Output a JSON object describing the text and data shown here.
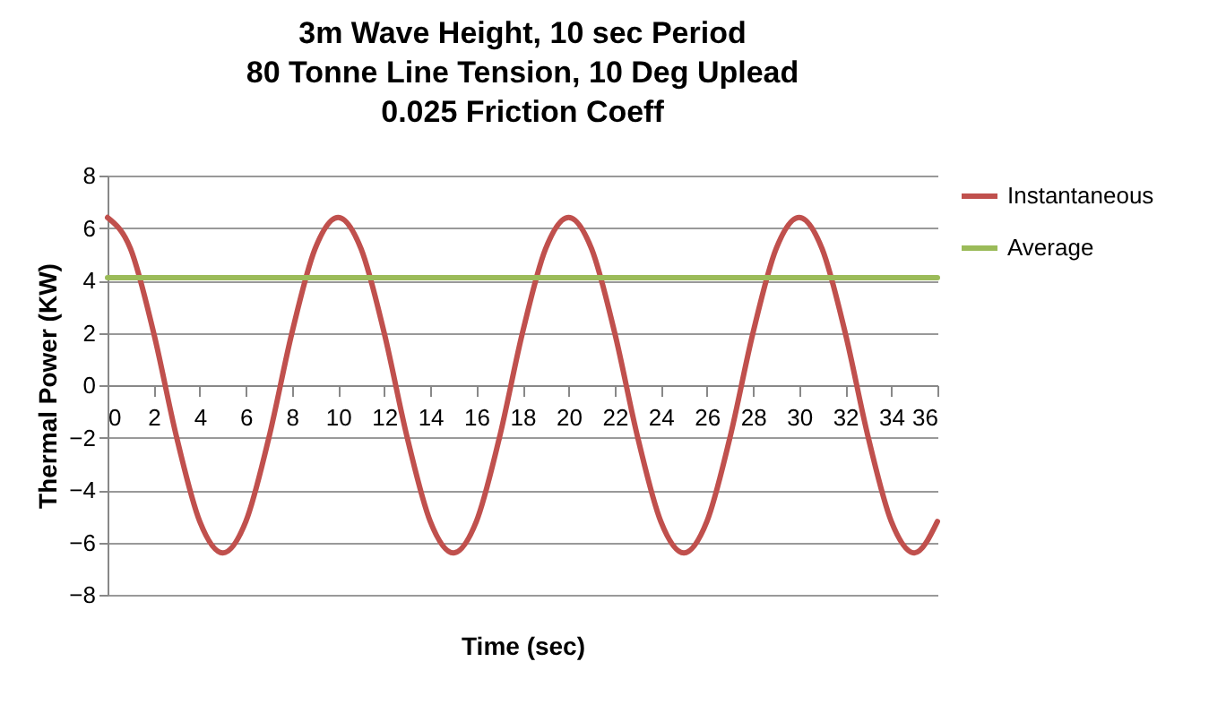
{
  "chart_data": {
    "type": "line",
    "title": "3m Wave Height, 10 sec Period\n80 Tonne Line Tension, 10 Deg Uplead\n0.025 Friction Coeff",
    "xlabel": "Time (sec)",
    "ylabel": "Thermal Power (KW)",
    "x": [
      0,
      1,
      2,
      3,
      4,
      5,
      6,
      7,
      8,
      9,
      10,
      11,
      12,
      13,
      14,
      15,
      16,
      17,
      18,
      19,
      20,
      21,
      22,
      23,
      24,
      25,
      26,
      27,
      28,
      29,
      30,
      31,
      32,
      33,
      34,
      35,
      36
    ],
    "series": [
      {
        "name": "Instantaneous",
        "color": "#c0504d",
        "values": [
          6.4,
          5.2,
          2.0,
          -2.0,
          -5.2,
          -6.4,
          -5.2,
          -2.0,
          2.0,
          5.2,
          6.4,
          5.2,
          2.0,
          -2.0,
          -5.2,
          -6.4,
          -5.2,
          -2.0,
          2.0,
          5.2,
          6.4,
          5.2,
          2.0,
          -2.0,
          -5.2,
          -6.4,
          -5.2,
          -2.0,
          2.0,
          5.2,
          6.4,
          5.2,
          2.0,
          -2.0,
          -5.2,
          -6.4,
          -5.2
        ]
      },
      {
        "name": "Average",
        "color": "#9bbb59",
        "x": [
          0,
          36
        ],
        "values": [
          4.1,
          4.1
        ]
      }
    ],
    "xlim": [
      0,
      36
    ],
    "xticks": [
      0,
      2,
      4,
      6,
      8,
      10,
      12,
      14,
      16,
      18,
      20,
      22,
      24,
      26,
      28,
      30,
      32,
      34,
      36
    ],
    "ylim": [
      -8,
      8
    ],
    "yticks": [
      -8,
      -6,
      -4,
      -2,
      0,
      2,
      4,
      6,
      8
    ],
    "grid": "y",
    "legend": "right",
    "marker": "none",
    "line_style": "solid"
  }
}
